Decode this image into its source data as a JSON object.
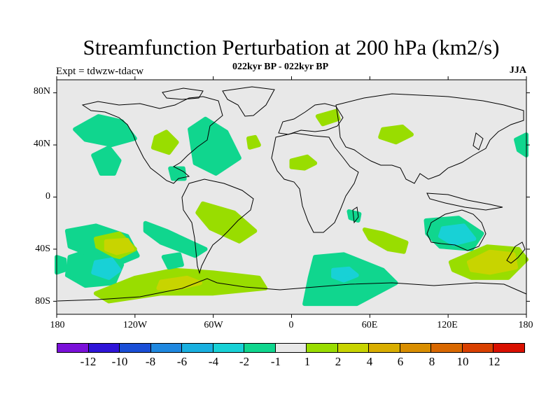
{
  "title": "Streamfunction Perturbation at 200 hPa (km2/s)",
  "subtitle": "022kyr BP - 022kyr BP",
  "experiment_label": "Expt = tdwzw-tdacw",
  "season": "JJA",
  "chart_data": {
    "type": "heatmap",
    "projection": "cylindrical-equidistant",
    "lon_range": [
      -180,
      180
    ],
    "lat_range": [
      -90,
      90
    ],
    "background_color": "#e8e8e8",
    "lat_ticks": [
      "80N",
      "40N",
      "0",
      "40S",
      "80S"
    ],
    "lon_ticks": [
      "180",
      "120W",
      "60W",
      "0",
      "60E",
      "120E",
      "180"
    ],
    "colorbar": {
      "colors": [
        "#7a10d9",
        "#2e14d8",
        "#1a4ed6",
        "#1f88e0",
        "#19b0e0",
        "#18d1d6",
        "#10d68e",
        "#e8e8e8",
        "#99dd00",
        "#c8d400",
        "#d9ae00",
        "#d98e00",
        "#d96800",
        "#d94000",
        "#d91000"
      ],
      "labels": [
        "-12",
        "-10",
        "-8",
        "-6",
        "-4",
        "-2",
        "-1",
        "1",
        "2",
        "4",
        "6",
        "8",
        "10",
        "12"
      ]
    },
    "regions": [
      {
        "level": "-2",
        "color": "#10d68e",
        "desc": "NE Pacific",
        "poly": [
          [
            -166,
            52
          ],
          [
            -148,
            62
          ],
          [
            -130,
            58
          ],
          [
            -120,
            45
          ],
          [
            -138,
            40
          ],
          [
            -158,
            44
          ]
        ]
      },
      {
        "level": "-2",
        "color": "#10d68e",
        "desc": "Central Pacific 30N",
        "poly": [
          [
            -152,
            32
          ],
          [
            -140,
            38
          ],
          [
            -132,
            28
          ],
          [
            -136,
            18
          ],
          [
            -146,
            18
          ]
        ]
      },
      {
        "level": "2",
        "color": "#99dd00",
        "desc": "Western US",
        "poly": [
          [
            -104,
            46
          ],
          [
            -96,
            50
          ],
          [
            -88,
            42
          ],
          [
            -94,
            34
          ],
          [
            -106,
            38
          ]
        ]
      },
      {
        "level": "-2",
        "color": "#10d68e",
        "desc": "North Atlantic",
        "poly": [
          [
            -78,
            52
          ],
          [
            -66,
            60
          ],
          [
            -50,
            50
          ],
          [
            -40,
            30
          ],
          [
            -58,
            18
          ],
          [
            -74,
            26
          ]
        ]
      },
      {
        "level": "-2",
        "color": "#10d68e",
        "desc": "Caribbean",
        "poly": [
          [
            -93,
            22
          ],
          [
            -83,
            22
          ],
          [
            -82,
            14
          ],
          [
            -91,
            14
          ]
        ]
      },
      {
        "level": "2",
        "color": "#99dd00",
        "desc": "Atlantic 40N",
        "poly": [
          [
            -33,
            45
          ],
          [
            -28,
            46
          ],
          [
            -25,
            40
          ],
          [
            -32,
            38
          ]
        ]
      },
      {
        "level": "2",
        "color": "#99dd00",
        "desc": "Scandinavia",
        "poly": [
          [
            20,
            62
          ],
          [
            34,
            66
          ],
          [
            36,
            60
          ],
          [
            24,
            56
          ]
        ]
      },
      {
        "level": "2",
        "color": "#99dd00",
        "desc": "Sahara",
        "poly": [
          [
            0,
            28
          ],
          [
            12,
            31
          ],
          [
            18,
            26
          ],
          [
            10,
            22
          ],
          [
            0,
            23
          ]
        ]
      },
      {
        "level": "2",
        "color": "#99dd00",
        "desc": "Central Asia",
        "poly": [
          [
            70,
            52
          ],
          [
            85,
            54
          ],
          [
            92,
            48
          ],
          [
            80,
            42
          ],
          [
            68,
            46
          ]
        ]
      },
      {
        "level": "-2",
        "color": "#10d68e",
        "desc": "NW Pacific edge",
        "poly": [
          [
            172,
            44
          ],
          [
            180,
            48
          ],
          [
            180,
            32
          ],
          [
            174,
            36
          ]
        ]
      },
      {
        "level": "2",
        "color": "#99dd00",
        "desc": "SE Pacific band",
        "poly": [
          [
            -68,
            -5
          ],
          [
            -44,
            -12
          ],
          [
            -28,
            -26
          ],
          [
            -40,
            -34
          ],
          [
            -62,
            -24
          ],
          [
            -72,
            -12
          ]
        ]
      },
      {
        "level": "-2",
        "color": "#10d68e",
        "desc": "S Pacific 25S",
        "poly": [
          [
            -112,
            -20
          ],
          [
            -96,
            -26
          ],
          [
            -66,
            -40
          ],
          [
            -74,
            -45
          ],
          [
            -100,
            -35
          ],
          [
            -112,
            -26
          ]
        ]
      },
      {
        "level": "-2",
        "color": "#10d68e",
        "desc": "S Pacific gyre",
        "poly": [
          [
            -172,
            -26
          ],
          [
            -150,
            -22
          ],
          [
            -126,
            -30
          ],
          [
            -118,
            -45
          ],
          [
            -130,
            -50
          ],
          [
            -150,
            -46
          ],
          [
            -170,
            -38
          ]
        ]
      },
      {
        "level": "2",
        "color": "#99dd00",
        "desc": "S Pacific +2",
        "poly": [
          [
            -150,
            -32
          ],
          [
            -132,
            -28
          ],
          [
            -120,
            -40
          ],
          [
            -132,
            -46
          ],
          [
            -148,
            -42
          ]
        ]
      },
      {
        "level": "4",
        "color": "#c8d400",
        "desc": "S Pacific +4",
        "poly": [
          [
            -142,
            -34
          ],
          [
            -126,
            -33
          ],
          [
            -122,
            -40
          ],
          [
            -134,
            -43
          ],
          [
            -142,
            -40
          ]
        ]
      },
      {
        "level": "-2",
        "color": "#10d68e",
        "desc": "SW Pacific -2",
        "poly": [
          [
            -170,
            -46
          ],
          [
            -152,
            -40
          ],
          [
            -130,
            -52
          ],
          [
            -136,
            -66
          ],
          [
            -158,
            -68
          ],
          [
            -172,
            -60
          ]
        ]
      },
      {
        "level": "-4",
        "color": "#18d1d6",
        "desc": "SW Pacific -4",
        "poly": [
          [
            -150,
            -50
          ],
          [
            -138,
            -48
          ],
          [
            -132,
            -56
          ],
          [
            -140,
            -62
          ],
          [
            -152,
            -58
          ]
        ]
      },
      {
        "level": "2",
        "color": "#99dd00",
        "desc": "Southern Ocean Pacific",
        "poly": [
          [
            -150,
            -74
          ],
          [
            -120,
            -62
          ],
          [
            -90,
            -56
          ],
          [
            -60,
            -58
          ],
          [
            -25,
            -62
          ],
          [
            -20,
            -70
          ],
          [
            -60,
            -74
          ],
          [
            -100,
            -74
          ],
          [
            -140,
            -80
          ]
        ]
      },
      {
        "level": "4",
        "color": "#c8d400",
        "desc": "Bellingshausen +4",
        "poly": [
          [
            -100,
            -65
          ],
          [
            -80,
            -62
          ],
          [
            -70,
            -66
          ],
          [
            -88,
            -70
          ],
          [
            -102,
            -70
          ]
        ]
      },
      {
        "level": "-2",
        "color": "#10d68e",
        "desc": "Chile coast",
        "poly": [
          [
            -98,
            -46
          ],
          [
            -86,
            -44
          ],
          [
            -84,
            -52
          ],
          [
            -94,
            -54
          ]
        ]
      },
      {
        "level": "-2",
        "color": "#10d68e",
        "desc": "Far SW corner",
        "poly": [
          [
            -180,
            -46
          ],
          [
            -174,
            -48
          ],
          [
            -174,
            -56
          ],
          [
            -180,
            -58
          ]
        ]
      },
      {
        "level": "2",
        "color": "#99dd00",
        "desc": "SE Atlantic band",
        "poly": [
          [
            56,
            -25
          ],
          [
            70,
            -28
          ],
          [
            88,
            -35
          ],
          [
            86,
            -42
          ],
          [
            74,
            -40
          ],
          [
            60,
            -32
          ]
        ]
      },
      {
        "level": "-2",
        "color": "#10d68e",
        "desc": "Southern Indian Ocean",
        "poly": [
          [
            18,
            -46
          ],
          [
            40,
            -44
          ],
          [
            70,
            -56
          ],
          [
            80,
            -66
          ],
          [
            50,
            -82
          ],
          [
            10,
            -82
          ],
          [
            14,
            -62
          ]
        ]
      },
      {
        "level": "-4",
        "color": "#18d1d6",
        "desc": "S Indian -4",
        "poly": [
          [
            32,
            -56
          ],
          [
            44,
            -55
          ],
          [
            50,
            -60
          ],
          [
            40,
            -64
          ],
          [
            32,
            -61
          ]
        ]
      },
      {
        "level": "-2",
        "color": "#10d68e",
        "desc": "Madagascar",
        "poly": [
          [
            44,
            -11
          ],
          [
            52,
            -13
          ],
          [
            51,
            -18
          ],
          [
            45,
            -16
          ]
        ]
      },
      {
        "level": "-2",
        "color": "#10d68e",
        "desc": "Australia",
        "poly": [
          [
            103,
            -18
          ],
          [
            128,
            -16
          ],
          [
            146,
            -28
          ],
          [
            138,
            -40
          ],
          [
            114,
            -38
          ],
          [
            104,
            -28
          ]
        ]
      },
      {
        "level": "-4",
        "color": "#18d1d6",
        "desc": "Australia -4",
        "poly": [
          [
            116,
            -24
          ],
          [
            132,
            -22
          ],
          [
            140,
            -32
          ],
          [
            124,
            -36
          ],
          [
            114,
            -30
          ]
        ]
      },
      {
        "level": "2",
        "color": "#99dd00",
        "desc": "New Zealand",
        "poly": [
          [
            122,
            -50
          ],
          [
            150,
            -38
          ],
          [
            174,
            -40
          ],
          [
            180,
            -48
          ],
          [
            166,
            -62
          ],
          [
            138,
            -62
          ],
          [
            124,
            -56
          ]
        ]
      },
      {
        "level": "4",
        "color": "#c8d400",
        "desc": "New Zealand +4",
        "poly": [
          [
            136,
            -50
          ],
          [
            152,
            -42
          ],
          [
            170,
            -44
          ],
          [
            172,
            -54
          ],
          [
            152,
            -58
          ],
          [
            138,
            -56
          ]
        ]
      }
    ]
  }
}
